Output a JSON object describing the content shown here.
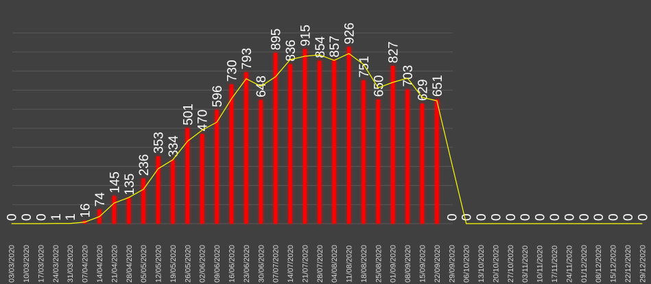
{
  "chart_data": {
    "type": "bar",
    "categories": [
      "03/03/2020",
      "10/03/2020",
      "17/03/2020",
      "24/03/2020",
      "31/03/2020",
      "07/04/2020",
      "14/04/2020",
      "21/04/2020",
      "28/04/2020",
      "05/05/2020",
      "12/05/2020",
      "19/05/2020",
      "26/05/2020",
      "02/06/2020",
      "09/06/2020",
      "16/06/2020",
      "23/06/2020",
      "30/06/2020",
      "07/07/2020",
      "14/07/2020",
      "21/07/2020",
      "28/07/2020",
      "04/08/2020",
      "11/08/2020",
      "18/08/2020",
      "25/08/2020",
      "01/09/2020",
      "08/09/2020",
      "15/09/2020",
      "22/09/2020",
      "29/09/2020",
      "06/10/2020",
      "13/10/2020",
      "20/10/2020",
      "27/10/2020",
      "03/11/2020",
      "10/11/2020",
      "17/11/2020",
      "24/11/2020",
      "01/12/2020",
      "08/12/2020",
      "15/12/2020",
      "22/12/2020",
      "29/12/2020"
    ],
    "series": [
      {
        "type": "bar",
        "color": "#ff0000",
        "values": [
          0,
          0,
          0,
          1,
          1,
          16,
          74,
          145,
          135,
          236,
          353,
          334,
          501,
          470,
          596,
          730,
          793,
          648,
          895,
          836,
          915,
          854,
          857,
          926,
          751,
          650,
          827,
          703,
          629,
          651,
          0,
          0,
          0,
          0,
          0,
          0,
          0,
          0,
          0,
          0,
          0,
          0,
          0,
          0
        ]
      },
      {
        "type": "line",
        "color": "#ffff00",
        "values": [
          0,
          0,
          0,
          1,
          1,
          8,
          37,
          108,
          137,
          180,
          288,
          335,
          432,
          490,
          532,
          655,
          760,
          720,
          770,
          860,
          878,
          885,
          856,
          892,
          835,
          712,
          741,
          763,
          662,
          644,
          320,
          0,
          0,
          0,
          0,
          0,
          0,
          0,
          0,
          0,
          0,
          0,
          0,
          0
        ]
      }
    ],
    "ylim": [
      0,
      1000
    ],
    "yticks": [
      0,
      100,
      200,
      300,
      400,
      500,
      600,
      700,
      800,
      900,
      1000
    ],
    "grid": true
  }
}
